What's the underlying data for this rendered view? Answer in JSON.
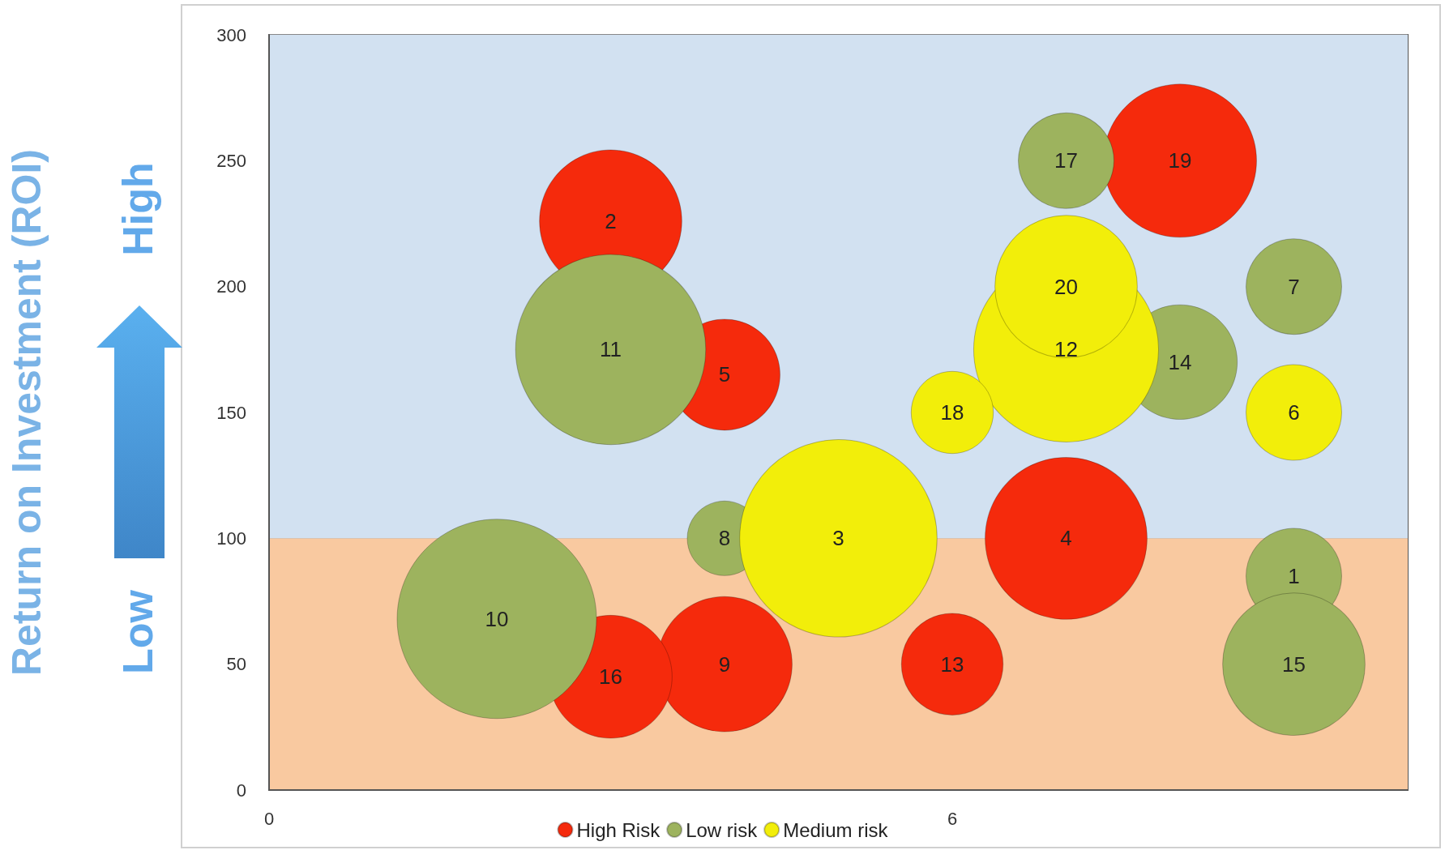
{
  "chart_data": {
    "type": "bubble",
    "ylabel": "Return on Investment (ROI)",
    "annotations": [
      "Low",
      "High",
      {
        "text": "2",
        "x": 3,
        "y": 226
      },
      {
        "text": "4",
        "x": 7,
        "y": 100
      },
      {
        "text": "5",
        "x": 4,
        "y": 165
      },
      {
        "text": "9",
        "x": 4,
        "y": 50
      },
      {
        "text": "13",
        "x": 6,
        "y": 50
      },
      {
        "text": "16",
        "x": 3,
        "y": 45
      },
      {
        "text": "19",
        "x": 8,
        "y": 250
      },
      {
        "text": "1",
        "x": 9,
        "y": 85
      },
      {
        "text": "7",
        "x": 9,
        "y": 200
      },
      {
        "text": "8",
        "x": 4,
        "y": 100
      },
      {
        "text": "10",
        "x": 2,
        "y": 68
      },
      {
        "text": "11",
        "x": 3,
        "y": 175
      },
      {
        "text": "14",
        "x": 8,
        "y": 170
      },
      {
        "text": "15",
        "x": 9,
        "y": 50
      },
      {
        "text": "17",
        "x": 7,
        "y": 250
      },
      {
        "text": "3",
        "x": 5,
        "y": 100
      },
      {
        "text": "6",
        "x": 9,
        "y": 150
      },
      {
        "text": "12",
        "x": 7,
        "y": 175
      },
      {
        "text": "18",
        "x": 6,
        "y": 150
      },
      {
        "text": "20",
        "x": 7,
        "y": 200
      }
    ],
    "xlim": [
      0,
      10
    ],
    "xticks": [
      0,
      6
    ],
    "ylim": [
      0,
      300
    ],
    "yticks": [
      0,
      50,
      100,
      150,
      200,
      250,
      300
    ],
    "grid": true,
    "legend": "bottom",
    "marker": "circle",
    "bands": [
      {
        "axis": "y",
        "from": 0,
        "to": 100,
        "color": "#f9c9a0"
      },
      {
        "axis": "y",
        "from": 100,
        "to": 300,
        "color": "#d2e1f1"
      }
    ],
    "series": [
      {
        "name": "High Risk",
        "color": "#f52a0c",
        "x": [
          3,
          7,
          4,
          4,
          6,
          3,
          8
        ],
        "values": [
          226,
          100,
          165,
          50,
          50,
          45,
          250
        ],
        "sizes": [
          0.51,
          0.66,
          0.31,
          0.46,
          0.26,
          0.38,
          0.59
        ]
      },
      {
        "name": "Low risk",
        "color": "#9db35e",
        "x": [
          9,
          9,
          4,
          2,
          3,
          8,
          9,
          7
        ],
        "values": [
          85,
          200,
          100,
          68,
          175,
          170,
          50,
          250
        ],
        "sizes": [
          0.23,
          0.23,
          0.14,
          1,
          0.91,
          0.33,
          0.51,
          0.23
        ]
      },
      {
        "name": "Medium risk",
        "color": "#f2ee0a",
        "x": [
          5,
          9,
          7,
          6,
          7
        ],
        "values": [
          100,
          150,
          175,
          150,
          200
        ],
        "sizes": [
          0.98,
          0.23,
          0.86,
          0.17,
          0.51
        ]
      }
    ]
  }
}
